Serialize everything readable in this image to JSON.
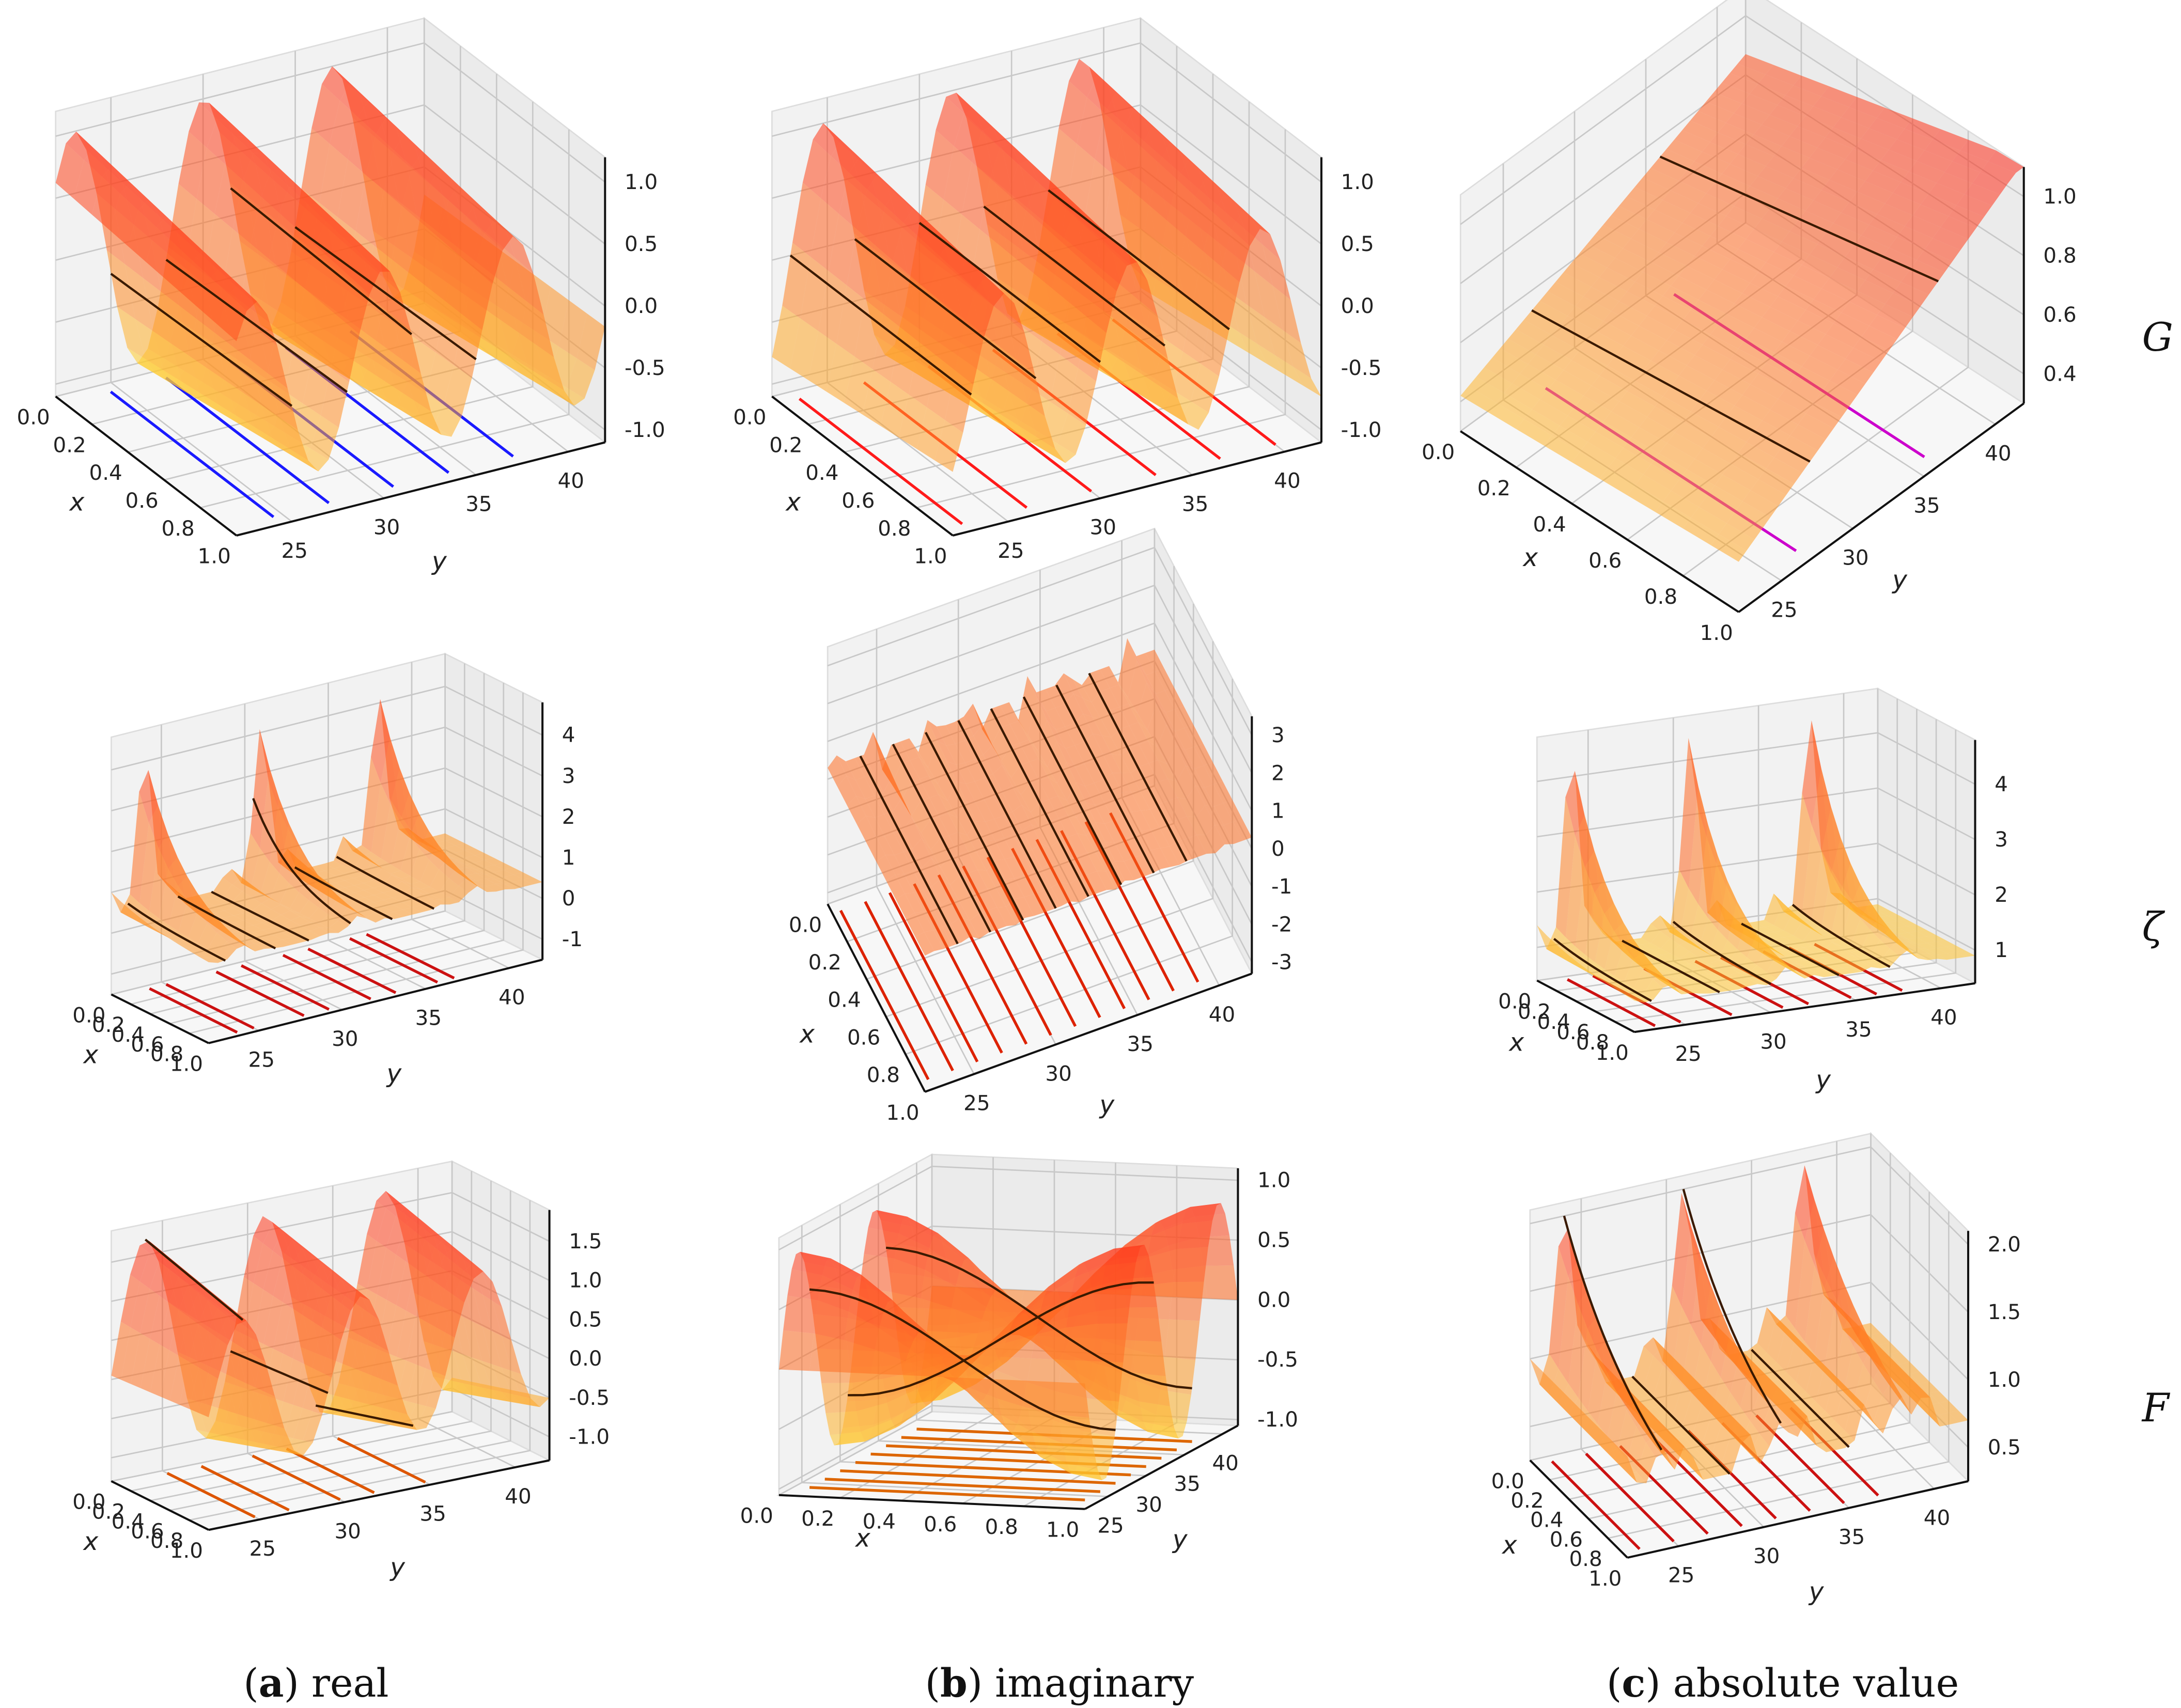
{
  "chart_data": [
    {
      "type": "surface",
      "row": "G",
      "column": "real",
      "xlim": [
        0,
        1
      ],
      "ylim": [
        22,
        42
      ],
      "zlim": [
        -1.1,
        1.2
      ],
      "xticks": [
        "0.0",
        "0.2",
        "0.4",
        "0.6",
        "0.8",
        "1.0"
      ],
      "yticks": [
        "25",
        "30",
        "35",
        "40"
      ],
      "zticks": [
        "1.0",
        "0.5",
        "0.0",
        "-0.5",
        "-1.0"
      ],
      "xlabel": "x",
      "ylabel": "y",
      "surface_lines_y": [
        25,
        28,
        31.5,
        35
      ],
      "floor_lines_y": [
        24.5,
        27.5,
        31,
        34,
        37.5
      ],
      "floor_color": "#1a1aff"
    },
    {
      "type": "surface",
      "row": "G",
      "column": "imaginary",
      "xlim": [
        0,
        1
      ],
      "ylim": [
        22,
        42
      ],
      "zlim": [
        -1.1,
        1.2
      ],
      "xticks": [
        "0.0",
        "0.2",
        "0.4",
        "0.6",
        "0.8",
        "1.0"
      ],
      "yticks": [
        "25",
        "30",
        "35",
        "40"
      ],
      "zticks": [
        "1.0",
        "0.5",
        "0.0",
        "-0.5",
        "-1.0"
      ],
      "xlabel": "x",
      "ylabel": "y",
      "surface_lines_y": [
        23,
        26.5,
        30,
        33.5,
        37
      ],
      "floor_lines_y": [
        23,
        26.5,
        30,
        33.5,
        37,
        40
      ],
      "floor_color": "#ff1a1a"
    },
    {
      "type": "surface",
      "row": "G",
      "column": "absolute value",
      "xlim": [
        0,
        1
      ],
      "ylim": [
        22,
        42
      ],
      "zlim": [
        0.3,
        1.1
      ],
      "xticks": [
        "0.0",
        "0.2",
        "0.4",
        "0.6",
        "0.8",
        "1.0"
      ],
      "yticks": [
        "25",
        "30",
        "35",
        "40"
      ],
      "zticks": [
        "1.0",
        "0.8",
        "0.6",
        "0.4"
      ],
      "xlabel": "x",
      "ylabel": "y",
      "surface_lines_y": [
        27,
        36
      ],
      "floor_lines_y": [
        27,
        36
      ],
      "floor_color": "#cc00cc"
    },
    {
      "type": "surface",
      "row": "ζ",
      "column": "real",
      "xlim": [
        0,
        1
      ],
      "ylim": [
        22,
        42
      ],
      "zlim": [
        -1.5,
        4.8
      ],
      "xticks": [
        "0.0",
        "0.2",
        "0.4",
        "0.6",
        "0.8",
        "1.0"
      ],
      "yticks": [
        "25",
        "30",
        "35",
        "40"
      ],
      "zticks": [
        "4",
        "3",
        "2",
        "1",
        "0",
        "-1"
      ],
      "xlabel": "x",
      "ylabel": "y",
      "surface_lines_y": [
        23,
        26,
        28,
        30.5,
        33,
        35.5
      ],
      "floor_lines_y": [
        24,
        25,
        28,
        29.5,
        32,
        33.5,
        36,
        37
      ],
      "floor_color": "#cc1111"
    },
    {
      "type": "surface",
      "row": "ζ",
      "column": "imaginary",
      "xlim": [
        0,
        1
      ],
      "ylim": [
        22,
        42
      ],
      "zlim": [
        -3.3,
        3.5
      ],
      "xticks": [
        "0.0",
        "0.2",
        "0.4",
        "0.6",
        "0.8",
        "1.0"
      ],
      "yticks": [
        "25",
        "30",
        "35",
        "40"
      ],
      "zticks": [
        "3",
        "2",
        "1",
        "0",
        "-1",
        "-2",
        "-3"
      ],
      "xlabel": "x",
      "ylabel": "y",
      "surface_lines_y": [
        24,
        26,
        28,
        30,
        32,
        34,
        36,
        38
      ],
      "floor_lines_y": [
        22.5,
        24,
        25.5,
        27,
        28.5,
        30,
        31.5,
        33,
        34.5,
        36,
        37.5,
        39
      ],
      "floor_color": "#dd2200"
    },
    {
      "type": "surface",
      "row": "ζ",
      "column": "absolute value",
      "xlim": [
        0,
        1
      ],
      "ylim": [
        22,
        42
      ],
      "zlim": [
        0.4,
        4.8
      ],
      "xticks": [
        "0.0",
        "0.2",
        "0.4",
        "0.6",
        "0.8",
        "1.0"
      ],
      "yticks": [
        "25",
        "30",
        "35",
        "40"
      ],
      "zticks": [
        "4",
        "3",
        "2",
        "1"
      ],
      "xlabel": "x",
      "ylabel": "y",
      "surface_lines_y": [
        23,
        27,
        30,
        34,
        37
      ],
      "floor_lines_y": [
        23.5,
        25,
        28,
        31,
        32.5,
        35,
        36.5,
        38
      ],
      "floor_color": "#cc1111"
    },
    {
      "type": "surface",
      "row": "F",
      "column": "real",
      "xlim": [
        0,
        1
      ],
      "ylim": [
        22,
        42
      ],
      "zlim": [
        -1.3,
        1.9
      ],
      "xticks": [
        "0.0",
        "0.2",
        "0.4",
        "0.6",
        "0.8",
        "1.0"
      ],
      "yticks": [
        "25",
        "30",
        "35",
        "40"
      ],
      "zticks": [
        "1.5",
        "1.0",
        "0.5",
        "0.0",
        "-0.5",
        "-1.0"
      ],
      "xlabel": "x",
      "ylabel": "y",
      "surface_lines_y": [
        24,
        29,
        34
      ],
      "floor_lines_y": [
        25,
        27,
        30,
        32,
        35
      ],
      "floor_color": "#dd5500"
    },
    {
      "type": "surface",
      "row": "F",
      "column": "imaginary",
      "xlim": [
        0,
        1
      ],
      "ylim": [
        22,
        42
      ],
      "zlim": [
        -1.05,
        1.1
      ],
      "xticks": [
        "0.0",
        "0.2",
        "0.4",
        "0.6",
        "0.8",
        "1.0"
      ],
      "yticks": [
        "25",
        "30",
        "35",
        "40"
      ],
      "zticks": [
        "1.0",
        "0.5",
        "0.0",
        "-0.5",
        "-1.0"
      ],
      "xlabel": "x",
      "ylabel": "y",
      "surface_lines_y": [
        26,
        31,
        36
      ],
      "floor_lines_y": [
        24,
        26,
        28,
        30,
        32,
        34,
        36,
        38
      ],
      "floor_color": "#dd6600"
    },
    {
      "type": "surface",
      "row": "F",
      "column": "absolute value",
      "xlim": [
        0,
        1
      ],
      "ylim": [
        22,
        42
      ],
      "zlim": [
        0.25,
        2.1
      ],
      "xticks": [
        "0.0",
        "0.2",
        "0.4",
        "0.6",
        "0.8",
        "1.0"
      ],
      "yticks": [
        "25",
        "30",
        "35",
        "40"
      ],
      "zticks": [
        "2.0",
        "1.5",
        "1.0",
        "0.5"
      ],
      "xlabel": "x",
      "ylabel": "y",
      "surface_lines_y": [
        24,
        28,
        31,
        35
      ],
      "floor_lines_y": [
        23,
        25,
        27,
        29,
        31,
        33,
        35,
        37
      ],
      "floor_color": "#cc1111"
    }
  ],
  "row_labels": [
    "G",
    "ζ",
    "F"
  ],
  "captions": [
    {
      "letter": "a",
      "text": " real"
    },
    {
      "letter": "b",
      "text": " imaginary"
    },
    {
      "letter": "c",
      "text": " absolute value"
    }
  ],
  "colors": {
    "surface_low": "#ffee33",
    "surface_high": "#ff2a1a",
    "pane": "#f2f2f2",
    "grid": "#c8c8c8",
    "surface_line": "#3a1a00"
  }
}
